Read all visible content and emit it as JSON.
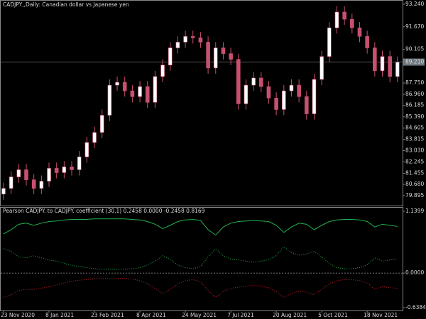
{
  "chart_data": [
    {
      "type": "candlestick",
      "title": "CADJPY,,Daily:  Canadian dollar vs Japanese yen",
      "categories": [
        "23 Nov 2020",
        null,
        null,
        null,
        null,
        null,
        "8 Jan 2021",
        null,
        null,
        null,
        null,
        null,
        "23 Feb 2021",
        null,
        null,
        null,
        null,
        null,
        "8 Apr 2021",
        null,
        null,
        null,
        null,
        null,
        "24 May 2021",
        null,
        null,
        null,
        null,
        null,
        "7 Jul 2021",
        null,
        null,
        null,
        null,
        null,
        "20 Aug 2021",
        null,
        null,
        null,
        null,
        null,
        "5 Oct 2021",
        null,
        null,
        null,
        null,
        null,
        "18 Nov 2021",
        null,
        null,
        null,
        null
      ],
      "open": [
        80.0,
        80.4,
        81.2,
        81.7,
        81.0,
        80.4,
        80.9,
        81.8,
        81.5,
        81.9,
        81.7,
        82.6,
        83.6,
        84.3,
        85.5,
        87.6,
        87.8,
        87.2,
        86.8,
        87.5,
        86.4,
        88.2,
        89.0,
        90.2,
        90.6,
        91.0,
        90.9,
        90.6,
        88.8,
        90.2,
        89.8,
        89.4,
        86.3,
        87.6,
        88.1,
        87.5,
        86.7,
        85.9,
        87.2,
        87.6,
        86.8,
        85.6,
        88.0,
        89.6,
        91.6,
        92.7,
        92.2,
        91.6,
        91.0,
        90.2,
        88.6,
        89.6,
        88.2
      ],
      "high": [
        80.8,
        81.6,
        82.1,
        82.1,
        81.4,
        81.3,
        82.2,
        82.2,
        82.3,
        82.3,
        83.0,
        84.0,
        84.7,
        85.9,
        88.0,
        88.2,
        88.2,
        87.6,
        87.9,
        87.9,
        88.6,
        89.4,
        90.6,
        91.0,
        91.4,
        91.4,
        91.3,
        91.0,
        90.6,
        90.6,
        90.2,
        89.8,
        88.0,
        88.5,
        88.5,
        87.9,
        87.1,
        87.6,
        88.0,
        88.0,
        87.2,
        88.4,
        90.0,
        92.0,
        93.1,
        93.1,
        92.6,
        92.0,
        91.4,
        90.6,
        90.0,
        90.0,
        89.6
      ],
      "low": [
        79.6,
        80.0,
        80.8,
        80.6,
        80.0,
        80.0,
        80.5,
        81.1,
        81.1,
        81.3,
        81.3,
        82.2,
        83.2,
        83.9,
        85.1,
        87.2,
        86.8,
        86.4,
        86.4,
        86.0,
        86.0,
        87.8,
        88.6,
        89.8,
        90.2,
        90.5,
        90.2,
        88.4,
        88.4,
        89.4,
        89.0,
        85.9,
        85.9,
        87.2,
        87.1,
        86.3,
        85.5,
        85.5,
        86.8,
        86.4,
        85.2,
        85.2,
        87.6,
        89.2,
        91.2,
        91.8,
        91.2,
        90.6,
        89.8,
        88.2,
        88.2,
        87.8,
        87.8
      ],
      "close": [
        80.4,
        81.2,
        81.7,
        81.0,
        80.4,
        80.9,
        81.8,
        81.5,
        81.9,
        81.7,
        82.6,
        83.6,
        84.3,
        85.5,
        87.6,
        87.8,
        87.2,
        86.8,
        87.5,
        86.4,
        88.2,
        89.0,
        90.2,
        90.6,
        91.0,
        90.9,
        90.6,
        88.8,
        90.2,
        89.8,
        89.4,
        86.3,
        87.6,
        88.1,
        87.5,
        86.7,
        85.9,
        87.2,
        87.6,
        86.8,
        85.6,
        88.0,
        89.6,
        91.6,
        92.7,
        92.2,
        91.6,
        91.0,
        90.2,
        88.6,
        89.6,
        88.2,
        89.2
      ],
      "up_color": "#ffffff",
      "down_color": "#c8506e",
      "wick_color": "#c8506e",
      "ylim": [
        79.2,
        93.49
      ],
      "yticks": [
        {
          "value": 93.24,
          "label": "93.240"
        },
        {
          "value": 91.67,
          "label": "91.670"
        },
        {
          "value": 90.105,
          "label": "90.105"
        },
        {
          "value": 87.75,
          "label": "87.750"
        },
        {
          "value": 86.96,
          "label": "86.960"
        },
        {
          "value": 86.185,
          "label": "86.185"
        },
        {
          "value": 85.39,
          "label": "85.390"
        },
        {
          "value": 84.605,
          "label": "84.605"
        },
        {
          "value": 83.815,
          "label": "83.815"
        },
        {
          "value": 83.03,
          "label": "83.030"
        },
        {
          "value": 82.245,
          "label": "82.245"
        },
        {
          "value": 81.455,
          "label": "81.455"
        },
        {
          "value": 80.68,
          "label": "80.680"
        },
        {
          "value": 79.895,
          "label": "79.895"
        }
      ],
      "last_price": {
        "value": 89.21,
        "label": "89.210"
      }
    },
    {
      "type": "line",
      "title": "Pearson CADJPY. to CADJPY. coefficient (30,1) 0.2458 0.0000 -0.2458 0.8169",
      "ylim": [
        -0.69,
        1.205
      ],
      "yticks": [
        {
          "value": 1.1399,
          "label": "1.1399"
        },
        {
          "value": 0,
          "label": "0.0000"
        },
        {
          "value": -0.6384,
          "label": "-0.6384"
        }
      ],
      "series": [
        {
          "color": "#22b14c",
          "style": "solid",
          "values": [
            0.72,
            0.8,
            0.9,
            0.92,
            0.88,
            0.92,
            0.95,
            0.96,
            0.98,
            0.99,
            0.99,
            0.99,
            1.0,
            1.0,
            1.0,
            1.0,
            1.0,
            0.99,
            0.98,
            0.95,
            0.9,
            0.82,
            0.88,
            0.95,
            0.98,
            0.99,
            0.97,
            0.8,
            0.7,
            0.85,
            0.92,
            0.95,
            0.96,
            0.97,
            0.96,
            0.95,
            0.88,
            0.75,
            0.85,
            0.92,
            0.9,
            0.8,
            0.88,
            0.95,
            0.98,
            0.99,
            0.99,
            0.98,
            0.95,
            0.85,
            0.9,
            0.88,
            0.86
          ]
        },
        {
          "color": "#22b14c",
          "style": "dotted",
          "values": [
            0.45,
            0.4,
            0.3,
            0.28,
            0.32,
            0.28,
            0.24,
            0.22,
            0.18,
            0.14,
            0.12,
            0.1,
            0.08,
            0.07,
            0.07,
            0.07,
            0.07,
            0.08,
            0.1,
            0.15,
            0.22,
            0.32,
            0.25,
            0.15,
            0.1,
            0.08,
            0.12,
            0.3,
            0.45,
            0.32,
            0.26,
            0.24,
            0.22,
            0.2,
            0.22,
            0.25,
            0.32,
            0.48,
            0.38,
            0.33,
            0.35,
            0.4,
            0.3,
            0.18,
            0.1,
            0.08,
            0.08,
            0.1,
            0.15,
            0.28,
            0.22,
            0.24,
            0.26
          ]
        },
        {
          "color": "#d0202a",
          "style": "dotted",
          "values": [
            -0.45,
            -0.4,
            -0.32,
            -0.3,
            -0.3,
            -0.28,
            -0.25,
            -0.22,
            -0.18,
            -0.15,
            -0.13,
            -0.12,
            -0.1,
            -0.1,
            -0.1,
            -0.1,
            -0.1,
            -0.11,
            -0.14,
            -0.2,
            -0.28,
            -0.38,
            -0.3,
            -0.2,
            -0.14,
            -0.12,
            -0.16,
            -0.32,
            -0.45,
            -0.34,
            -0.28,
            -0.26,
            -0.24,
            -0.23,
            -0.24,
            -0.27,
            -0.34,
            -0.45,
            -0.38,
            -0.33,
            -0.35,
            -0.4,
            -0.3,
            -0.2,
            -0.14,
            -0.12,
            -0.12,
            -0.14,
            -0.18,
            -0.3,
            -0.25,
            -0.27,
            -0.28
          ]
        }
      ]
    }
  ]
}
